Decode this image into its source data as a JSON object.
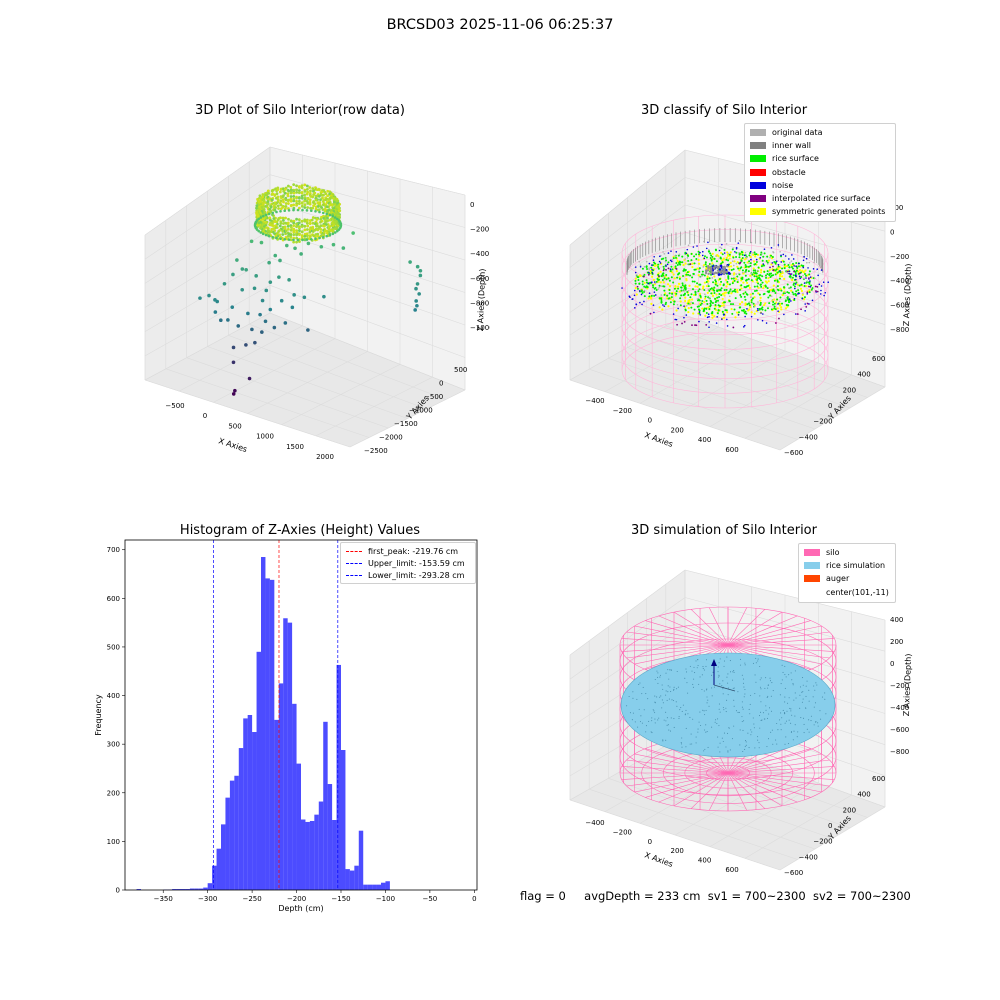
{
  "suptitle": "BRCSD03 2025-11-06 06:25:37",
  "footer": {
    "flag": "flag = 0",
    "avgDepth": "avgDepth = 233 cm",
    "sv1": "sv1 = 700~2300",
    "sv2": "sv2 = 700~2300"
  },
  "panels": {
    "raw": {
      "title": "3D Plot of Silo Interior(row data)",
      "xlabel": "X Axies",
      "ylabel": "Y Axies",
      "zlabel": "Z Axies (Depth)",
      "xticks": [
        "-500",
        "0",
        "500",
        "1000",
        "1500",
        "2000"
      ],
      "yticks": [
        "500",
        "0",
        "-500",
        "-1000",
        "-1500",
        "-2000",
        "-2500"
      ],
      "zticks": [
        "0",
        "-200",
        "-400",
        "-600",
        "-800",
        "-1000"
      ]
    },
    "classify": {
      "title": "3D classify of Silo Interior",
      "legend": [
        {
          "label": "original data",
          "color": "#b0b0b0"
        },
        {
          "label": "inner wall",
          "color": "#808080"
        },
        {
          "label": "rice surface",
          "color": "#00ee00"
        },
        {
          "label": "obstacle",
          "color": "#ff0000"
        },
        {
          "label": "noise",
          "color": "#0000dd"
        },
        {
          "label": "interpolated rice surface",
          "color": "#800080"
        },
        {
          "label": "symmetric generated points",
          "color": "#ffff00"
        }
      ],
      "xlabel": "X Axies",
      "ylabel": "Y Axies",
      "zlabel": "Z Axies (Depth)",
      "xticks": [
        "-400",
        "-200",
        "0",
        "200",
        "400",
        "600"
      ],
      "yticks": [
        "600",
        "400",
        "200",
        "0",
        "-200",
        "-400",
        "-600"
      ],
      "zticks": [
        "200",
        "0",
        "-200",
        "-400",
        "-600",
        "-800"
      ]
    },
    "simulation": {
      "title": "3D simulation of Silo Interior",
      "legend": [
        {
          "label": "silo",
          "color": "#ff69b4"
        },
        {
          "label": "rice simulation",
          "color": "#87ceeb"
        },
        {
          "label": "auger",
          "color": "#ff4500"
        },
        {
          "label": "center(101,-11)",
          "color": ""
        }
      ],
      "xlabel": "X Axies",
      "ylabel": "Y Axies",
      "zlabel": "Z Axies (Depth)",
      "xticks": [
        "-400",
        "-200",
        "0",
        "200",
        "400",
        "600"
      ],
      "yticks": [
        "600",
        "400",
        "200",
        "0",
        "-200",
        "-400",
        "-600"
      ],
      "zticks": [
        "400",
        "200",
        "0",
        "-200",
        "-400",
        "-600",
        "-800"
      ]
    }
  },
  "chart_data": {
    "type": "bar",
    "title": "Histogram of Z-Axies (Height) Values",
    "xlabel": "Depth (cm)",
    "ylabel": "Frequency",
    "xlim": [
      -393,
      3
    ],
    "ylim": [
      0,
      720
    ],
    "xticks": [
      -350,
      -300,
      -250,
      -200,
      -150,
      -100,
      -50,
      0
    ],
    "yticks": [
      0,
      100,
      200,
      300,
      400,
      500,
      600,
      700
    ],
    "bar_color": "#0000ff",
    "bins": [
      [
        -380,
        -375,
        2
      ],
      [
        -375,
        -370,
        0
      ],
      [
        -370,
        -365,
        0
      ],
      [
        -365,
        -360,
        0
      ],
      [
        -360,
        -355,
        0
      ],
      [
        -355,
        -350,
        0
      ],
      [
        -350,
        -345,
        1
      ],
      [
        -345,
        -340,
        1
      ],
      [
        -340,
        -335,
        2
      ],
      [
        -335,
        -330,
        2
      ],
      [
        -330,
        -325,
        2
      ],
      [
        -325,
        -320,
        2
      ],
      [
        -320,
        -315,
        3
      ],
      [
        -315,
        -310,
        3
      ],
      [
        -310,
        -305,
        3
      ],
      [
        -305,
        -300,
        5
      ],
      [
        -300,
        -295,
        14
      ],
      [
        -295,
        -290,
        50
      ],
      [
        -290,
        -285,
        85
      ],
      [
        -285,
        -280,
        135
      ],
      [
        -280,
        -275,
        190
      ],
      [
        -275,
        -270,
        225
      ],
      [
        -270,
        -265,
        235
      ],
      [
        -265,
        -260,
        292
      ],
      [
        -260,
        -255,
        353
      ],
      [
        -255,
        -250,
        360
      ],
      [
        -250,
        -245,
        325
      ],
      [
        -245,
        -240,
        490
      ],
      [
        -240,
        -235,
        685
      ],
      [
        -235,
        -230,
        641
      ],
      [
        -230,
        -225,
        638
      ],
      [
        -225,
        -220,
        350
      ],
      [
        -220,
        -215,
        425
      ],
      [
        -215,
        -210,
        559
      ],
      [
        -210,
        -205,
        550
      ],
      [
        -205,
        -200,
        383
      ],
      [
        -200,
        -195,
        260
      ],
      [
        -195,
        -190,
        145
      ],
      [
        -190,
        -185,
        140
      ],
      [
        -185,
        -180,
        142
      ],
      [
        -180,
        -175,
        155
      ],
      [
        -175,
        -170,
        182
      ],
      [
        -170,
        -165,
        346
      ],
      [
        -165,
        -160,
        218
      ],
      [
        -160,
        -155,
        144
      ],
      [
        -155,
        -150,
        463
      ],
      [
        -150,
        -145,
        288
      ],
      [
        -145,
        -140,
        43
      ],
      [
        -140,
        -135,
        40
      ],
      [
        -135,
        -130,
        50
      ],
      [
        -130,
        -125,
        122
      ],
      [
        -125,
        -120,
        11
      ],
      [
        -120,
        -115,
        11
      ],
      [
        -115,
        -110,
        11
      ],
      [
        -110,
        -105,
        11
      ],
      [
        -105,
        -100,
        15
      ],
      [
        -100,
        -95,
        18
      ]
    ],
    "vlines": [
      {
        "label": "first_peak: -219.76 cm",
        "x": -219.76,
        "color": "#ff0000"
      },
      {
        "label": "Upper_limit: -153.59 cm",
        "x": -153.59,
        "color": "#0000ff"
      },
      {
        "label": "Lower_limit: -293.28 cm",
        "x": -293.28,
        "color": "#0000ff"
      }
    ]
  }
}
